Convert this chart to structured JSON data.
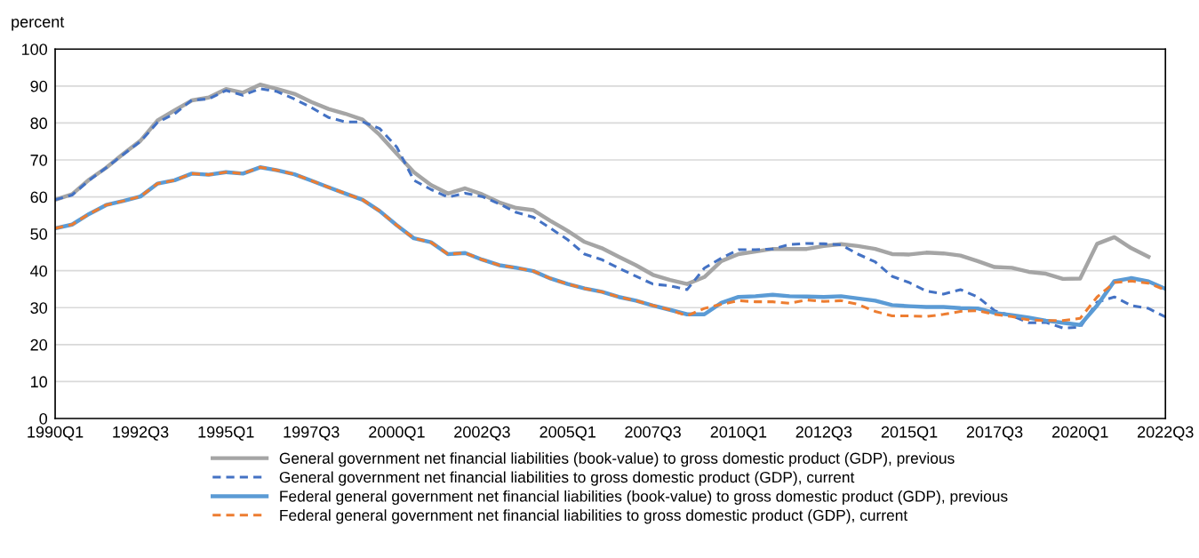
{
  "chart_data": {
    "type": "line",
    "ylabel": "percent",
    "x": [
      "1990-01",
      "1990-07",
      "1991-01",
      "1991-07",
      "1992-01",
      "1992-07",
      "1993-01",
      "1993-07",
      "1994-01",
      "1994-07",
      "1995-01",
      "1995-07",
      "1996-01",
      "1996-07",
      "1997-01",
      "1997-07",
      "1998-01",
      "1998-07",
      "1999-01",
      "1999-07",
      "2000-01",
      "2000-07",
      "2001-01",
      "2001-07",
      "2002-01",
      "2002-07",
      "2003-01",
      "2003-07",
      "2004-01",
      "2004-07",
      "2005-01",
      "2005-07",
      "2006-01",
      "2006-07",
      "2007-01",
      "2007-07",
      "2008-01",
      "2008-07",
      "2009-01",
      "2009-07",
      "2010-01",
      "2010-07",
      "2011-01",
      "2011-07",
      "2012-01",
      "2012-07",
      "2013-01",
      "2013-07",
      "2014-01",
      "2014-07",
      "2015-01",
      "2015-07",
      "2016-01",
      "2016-07",
      "2017-01",
      "2017-07",
      "2018-01",
      "2018-07",
      "2019-01",
      "2019-07",
      "2020-01",
      "2020-07",
      "2021-01",
      "2021-07",
      "2022-01",
      "2022-07"
    ],
    "series": [
      {
        "name": "General government net financial liabilities (book-value) to gross domestic product (GDP), previous",
        "color": "#a5a5a5",
        "line_style": "solid",
        "values": [
          59.2,
          60.7,
          64.7,
          67.9,
          71.7,
          75.2,
          80.7,
          83.4,
          86.1,
          86.9,
          89.2,
          88.2,
          90.4,
          89.2,
          87.9,
          85.7,
          83.8,
          82.5,
          80.9,
          76.8,
          71.7,
          66.7,
          63.2,
          60.9,
          62.3,
          60.7,
          58.5,
          57.0,
          56.4,
          53.5,
          50.8,
          47.8,
          46.1,
          43.8,
          41.5,
          38.9,
          37.5,
          36.4,
          38.3,
          42.6,
          44.5,
          45.2,
          45.9,
          45.9,
          45.9,
          46.7,
          47.2,
          46.7,
          45.9,
          44.5,
          44.4,
          44.9,
          44.7,
          44.1,
          42.6,
          41.0,
          40.8,
          39.7,
          39.2,
          37.8,
          37.9,
          47.3,
          49.1,
          46.1,
          43.8,
          null
        ]
      },
      {
        "name": "General government net financial liabilities to gross domestic product (GDP), current",
        "color": "#4472c4",
        "line_style": "dashed",
        "values": [
          59.2,
          60.5,
          64.5,
          67.9,
          71.5,
          75.0,
          80.2,
          82.5,
          86.2,
          86.5,
          88.8,
          87.5,
          89.3,
          88.5,
          86.5,
          84.2,
          81.5,
          80.3,
          80.3,
          78.5,
          73.5,
          64.5,
          62.0,
          59.9,
          61.0,
          60.1,
          58.1,
          55.8,
          54.5,
          51.5,
          48.4,
          44.5,
          43.0,
          40.7,
          38.5,
          36.4,
          35.9,
          34.9,
          40.7,
          43.4,
          45.7,
          45.7,
          45.9,
          47.1,
          47.4,
          47.3,
          47.0,
          44.5,
          42.4,
          38.5,
          36.8,
          34.5,
          33.7,
          34.9,
          32.9,
          29.2,
          27.8,
          25.9,
          26.0,
          24.5,
          24.7,
          31.5,
          32.9,
          30.6,
          29.8,
          27.5
        ]
      },
      {
        "name": "Federal general government net financial liabilities (book-value) to gross domestic product (GDP), previous",
        "color": "#5b9bd5",
        "line_style": "solid",
        "values": [
          51.5,
          52.5,
          55.4,
          57.8,
          58.9,
          60.1,
          63.6,
          64.5,
          66.3,
          66.0,
          66.7,
          66.3,
          68.0,
          67.2,
          66.1,
          64.4,
          62.6,
          60.9,
          59.2,
          56.2,
          52.3,
          48.8,
          47.7,
          44.5,
          44.8,
          43.0,
          41.5,
          40.8,
          39.9,
          37.9,
          36.4,
          35.2,
          34.3,
          32.9,
          31.9,
          30.6,
          29.4,
          28.2,
          28.2,
          31.3,
          32.9,
          33.1,
          33.5,
          33.1,
          33.0,
          32.9,
          33.1,
          32.5,
          31.9,
          30.7,
          30.4,
          30.2,
          30.2,
          29.9,
          29.8,
          28.6,
          28.0,
          27.3,
          26.5,
          25.9,
          25.3,
          30.6,
          37.2,
          38.0,
          37.1,
          35.1
        ]
      },
      {
        "name": "Federal general government net financial liabilities to gross domestic product (GDP), current",
        "color": "#ed7d31",
        "line_style": "dashed",
        "values": [
          51.5,
          52.5,
          55.4,
          57.8,
          58.9,
          60.1,
          63.6,
          64.5,
          66.3,
          66.0,
          66.7,
          66.3,
          68.0,
          67.2,
          66.1,
          64.4,
          62.6,
          60.9,
          59.2,
          56.2,
          52.3,
          48.8,
          47.7,
          44.5,
          44.8,
          43.0,
          41.5,
          40.8,
          39.9,
          37.9,
          36.4,
          35.2,
          34.3,
          32.9,
          31.9,
          30.6,
          29.4,
          27.8,
          29.8,
          30.9,
          31.9,
          31.6,
          31.6,
          31.2,
          32.1,
          31.7,
          31.9,
          30.9,
          29.0,
          27.8,
          27.8,
          27.6,
          28.2,
          29.0,
          29.2,
          28.2,
          27.6,
          26.7,
          26.5,
          26.5,
          27.1,
          32.9,
          36.8,
          37.2,
          36.6,
          34.8
        ]
      }
    ],
    "xlim": [
      "1990-01",
      "2022-07"
    ],
    "xticks": [
      {
        "value": "1990-01",
        "label": "1990Q1"
      },
      {
        "value": "1992-07",
        "label": "1992Q3"
      },
      {
        "value": "1995-01",
        "label": "1995Q1"
      },
      {
        "value": "1997-07",
        "label": "1997Q3"
      },
      {
        "value": "2000-01",
        "label": "2000Q1"
      },
      {
        "value": "2002-07",
        "label": "2002Q3"
      },
      {
        "value": "2005-01",
        "label": "2005Q1"
      },
      {
        "value": "2007-07",
        "label": "2007Q3"
      },
      {
        "value": "2010-01",
        "label": "2010Q1"
      },
      {
        "value": "2012-07",
        "label": "2012Q3"
      },
      {
        "value": "2015-01",
        "label": "2015Q1"
      },
      {
        "value": "2017-07",
        "label": "2017Q3"
      },
      {
        "value": "2020-01",
        "label": "2020Q1"
      },
      {
        "value": "2022-07",
        "label": "2022Q3"
      }
    ],
    "ylim": [
      0,
      100
    ],
    "yticks": [
      0,
      10,
      20,
      30,
      40,
      50,
      60,
      70,
      80,
      90,
      100
    ],
    "grid": "y",
    "legend": "bottom",
    "marker": "none"
  }
}
